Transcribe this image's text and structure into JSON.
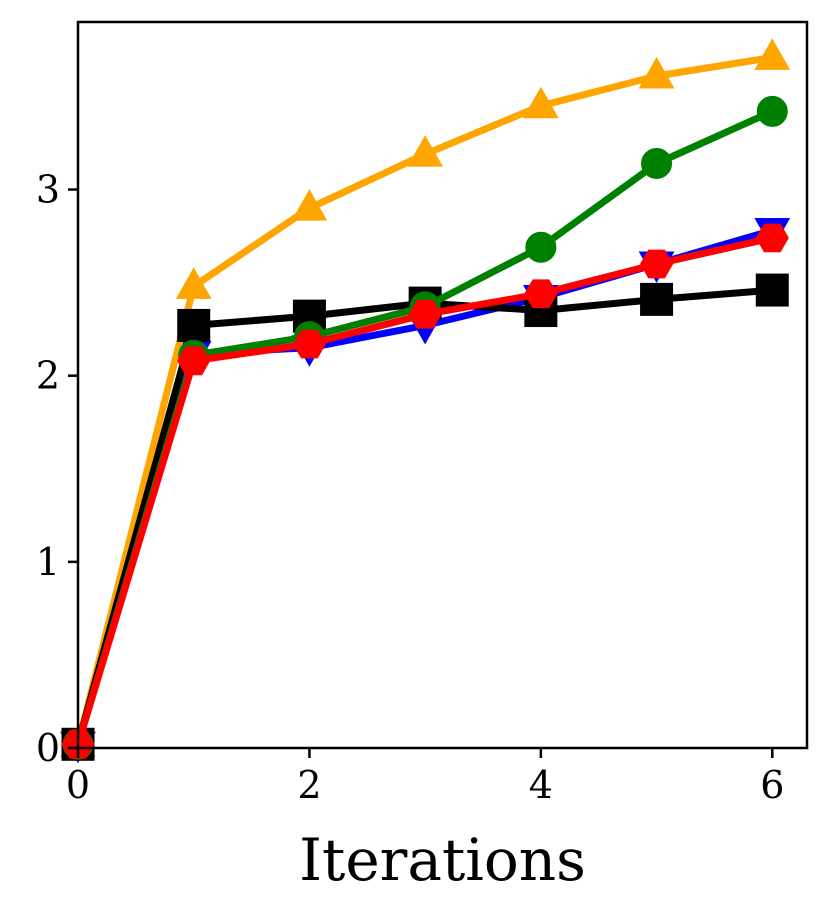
{
  "chart_data": {
    "type": "line",
    "title": "",
    "xlabel": "Iterations",
    "ylabel": "",
    "xlim": [
      0,
      6.3
    ],
    "ylim": [
      0,
      3.9
    ],
    "xticks": [
      0,
      2,
      4,
      6
    ],
    "yticks": [
      0,
      1,
      2,
      3
    ],
    "grid": false,
    "x": [
      0,
      1,
      2,
      3,
      4,
      5,
      6
    ],
    "series": [
      {
        "color": "#0000ff",
        "marker": "triangle-down",
        "values": [
          0.02,
          2.12,
          2.15,
          2.27,
          2.42,
          2.6,
          2.78
        ]
      },
      {
        "color": "#ffa500",
        "marker": "triangle-up",
        "values": [
          0.02,
          2.48,
          2.9,
          3.19,
          3.45,
          3.61,
          3.71
        ]
      },
      {
        "color": "#000000",
        "marker": "square",
        "values": [
          0.02,
          2.27,
          2.32,
          2.39,
          2.35,
          2.41,
          2.46
        ]
      },
      {
        "color": "#008000",
        "marker": "circle",
        "values": [
          0.02,
          2.11,
          2.21,
          2.37,
          2.69,
          3.14,
          3.42
        ]
      },
      {
        "color": "#ff0000",
        "marker": "hexagon",
        "values": [
          0.02,
          2.08,
          2.17,
          2.33,
          2.44,
          2.6,
          2.74
        ]
      }
    ]
  }
}
